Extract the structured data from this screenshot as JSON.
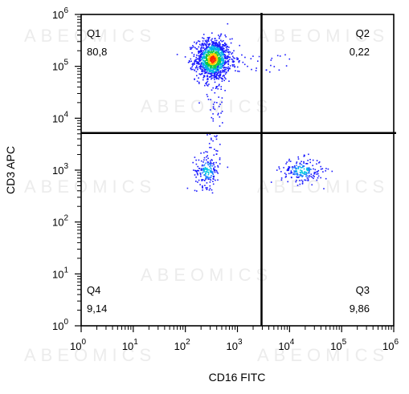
{
  "chart_data": {
    "type": "scatter",
    "subtype": "flow-cytometry-density-dot-plot",
    "xlabel": "CD16 FITC",
    "ylabel": "CD3 APC",
    "x_scale": "log",
    "y_scale": "log",
    "xlim": [
      1,
      1000000
    ],
    "ylim": [
      1,
      1000000
    ],
    "x_ticks": [
      {
        "value": 1,
        "base": "10",
        "exp": "0"
      },
      {
        "value": 10,
        "base": "10",
        "exp": "1"
      },
      {
        "value": 100,
        "base": "10",
        "exp": "2"
      },
      {
        "value": 1000,
        "base": "10",
        "exp": "3"
      },
      {
        "value": 10000,
        "base": "10",
        "exp": "4"
      },
      {
        "value": 100000,
        "base": "10",
        "exp": "5"
      },
      {
        "value": 1000000,
        "base": "10",
        "exp": "6"
      }
    ],
    "y_ticks": [
      {
        "value": 1,
        "base": "10",
        "exp": "0"
      },
      {
        "value": 10,
        "base": "10",
        "exp": "1"
      },
      {
        "value": 100,
        "base": "10",
        "exp": "2"
      },
      {
        "value": 1000,
        "base": "10",
        "exp": "3"
      },
      {
        "value": 10000,
        "base": "10",
        "exp": "4"
      },
      {
        "value": 100000,
        "base": "10",
        "exp": "5"
      },
      {
        "value": 1000000,
        "base": "10",
        "exp": "6"
      }
    ],
    "gates": {
      "x": 2900,
      "y": 5200
    },
    "quadrants": [
      {
        "name": "Q1",
        "value": "80,8",
        "corner": "top-left"
      },
      {
        "name": "Q2",
        "value": "0,22",
        "corner": "top-right"
      },
      {
        "name": "Q3",
        "value": "9,86",
        "corner": "bottom-right"
      },
      {
        "name": "Q4",
        "value": "9,14",
        "corner": "bottom-left"
      }
    ],
    "populations": [
      {
        "quadrant": "Q1",
        "center": [
          330,
          140000
        ],
        "spread_decades": [
          0.17,
          0.2
        ],
        "events": 1150,
        "peak": "red"
      },
      {
        "quadrant": "Q4",
        "center": [
          260,
          1000
        ],
        "spread_decades": [
          0.12,
          0.16
        ],
        "events": 180,
        "peak": "cyan"
      },
      {
        "quadrant": "Q3",
        "center": [
          17000,
          1000
        ],
        "spread_decades": [
          0.2,
          0.12
        ],
        "events": 210,
        "peak": "cyan"
      }
    ],
    "grid": false,
    "colors": {
      "low_density": "#1a1aff",
      "mid_density": "#00cc66",
      "high_density": "#ff1a00",
      "gate_lines": "#000000"
    }
  },
  "watermark": "ABEOMICS"
}
